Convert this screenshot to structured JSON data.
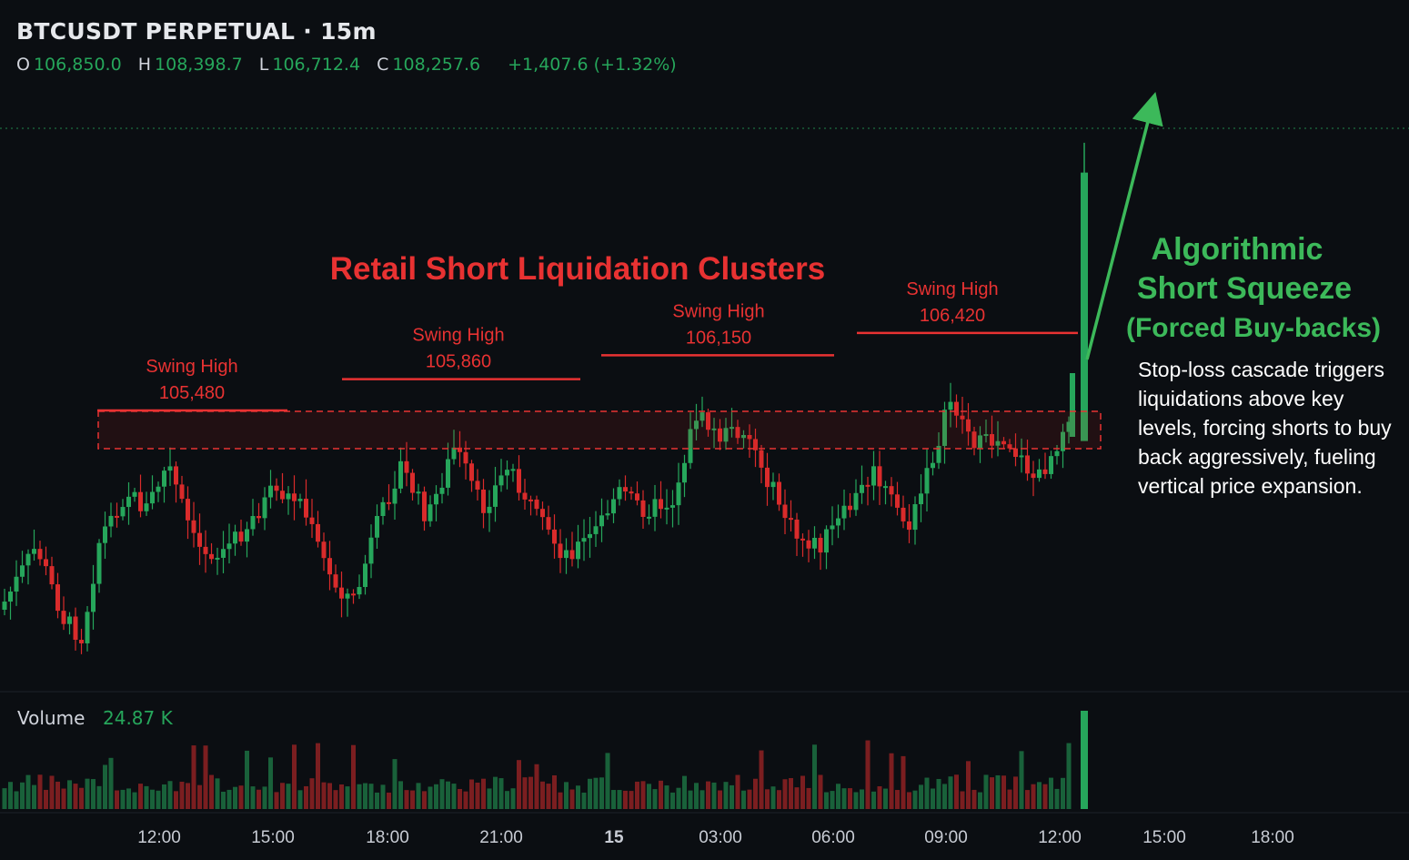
{
  "header": {
    "title": "BTCUSDT PERPETUAL · 15m",
    "open_label": "O",
    "open": "106,850.0",
    "high_label": "H",
    "high": "108,398.7",
    "low_label": "L",
    "low": "106,712.4",
    "close_label": "C",
    "close": "108,257.6",
    "change": "+1,407.6 (+1.32%)"
  },
  "volume_pane": {
    "label": "Volume",
    "value": "24.87 K"
  },
  "annotations": {
    "cluster_title": "Retail Short Liquidation Clusters",
    "squeeze_title_1": "Algorithmic",
    "squeeze_title_2": "Short Squeeze",
    "squeeze_title_3": "(Forced Buy-backs)",
    "squeeze_note": "Stop-loss cascade triggers liquidations above key levels, forcing shorts to buy back aggressively, fueling vertical price expansion.",
    "swing_highs": [
      {
        "label": "Swing High",
        "value": "105,480"
      },
      {
        "label": "Swing High",
        "value": "105,860"
      },
      {
        "label": "Swing High",
        "value": "106,150"
      },
      {
        "label": "Swing High",
        "value": "106,420"
      }
    ]
  },
  "colors": {
    "up": "#26a65b",
    "down": "#d92b2b",
    "background": "#0b0e12",
    "annotation_red": "#e83232",
    "annotation_green": "#3cb95a"
  },
  "chart_data": {
    "type": "candlestick",
    "symbol": "BTCUSDT PERPETUAL",
    "interval": "15m",
    "x_ticks": [
      "12:00",
      "15:00",
      "18:00",
      "21:00",
      "15",
      "03:00",
      "06:00",
      "09:00",
      "12:00",
      "15:00",
      "18:00"
    ],
    "swing_highs": [
      105480,
      105860,
      106150,
      106420
    ],
    "last_candle": {
      "open": 106850.0,
      "high": 108398.7,
      "low": 106712.4,
      "close": 108257.6
    },
    "volume_last": "24.87 K",
    "grid": false
  }
}
